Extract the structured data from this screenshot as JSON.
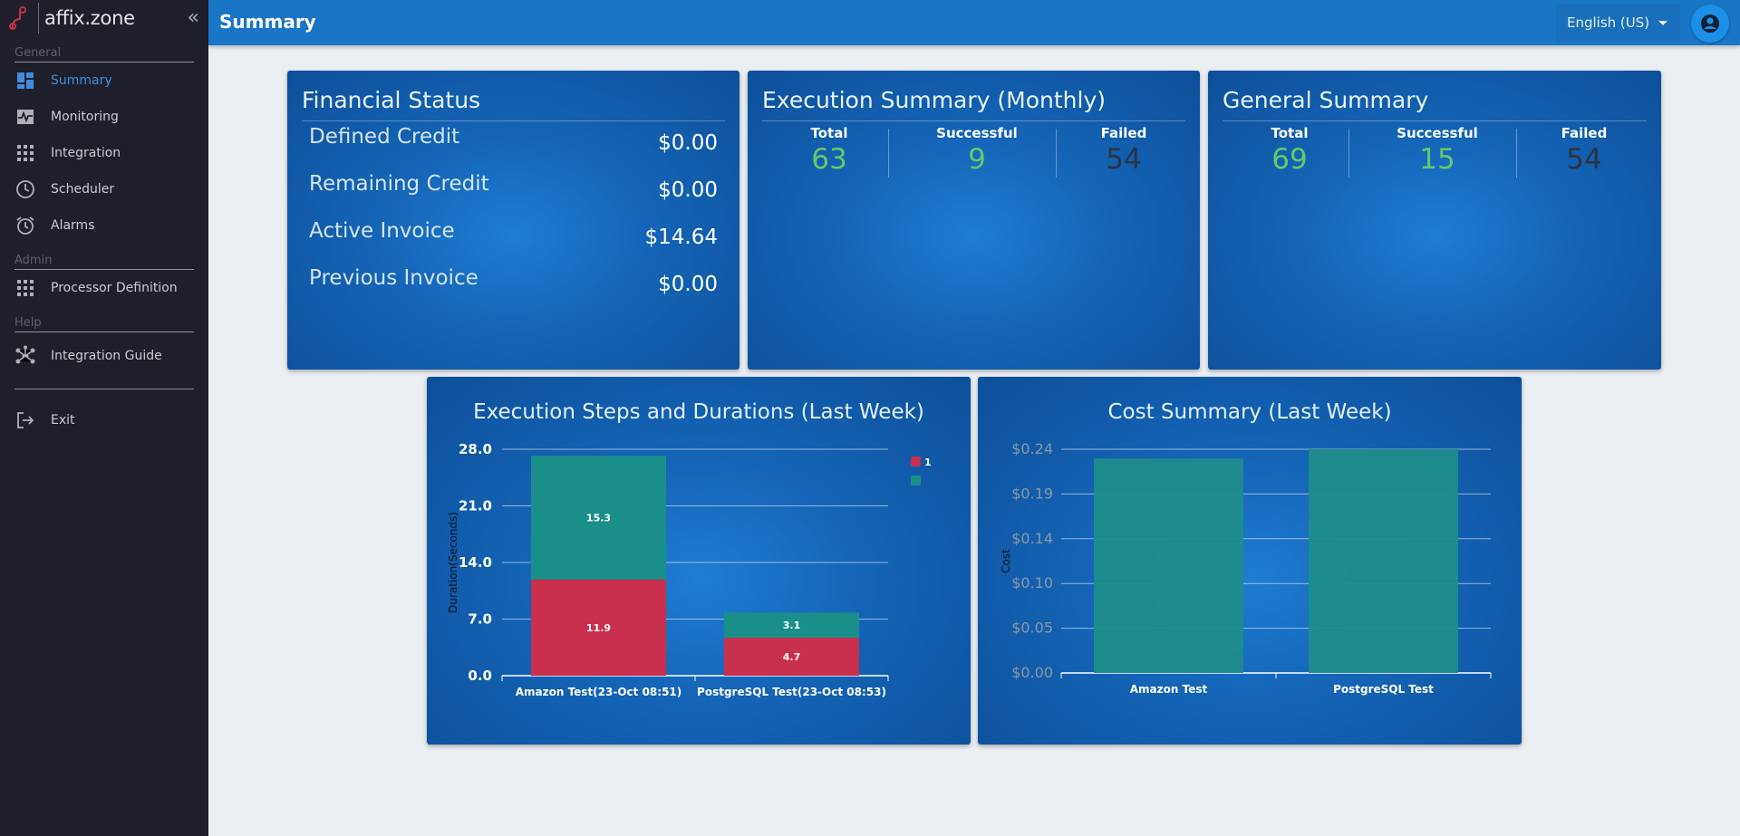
{
  "app": {
    "logo_text": "affix.zone"
  },
  "sidebar": {
    "collapse_glyph": "«",
    "sections": [
      {
        "label": "General"
      },
      {
        "label": "Admin"
      },
      {
        "label": "Help"
      }
    ],
    "items": [
      {
        "label": "Summary",
        "icon": "dashboard-icon",
        "active": true
      },
      {
        "label": "Monitoring",
        "icon": "monitoring-icon"
      },
      {
        "label": "Integration",
        "icon": "apps-grid-icon"
      },
      {
        "label": "Scheduler",
        "icon": "clock-icon"
      },
      {
        "label": "Alarms",
        "icon": "alarm-clock-icon"
      },
      {
        "label": "Processor Definition",
        "icon": "apps-grid-icon"
      },
      {
        "label": "Integration Guide",
        "icon": "hub-icon"
      },
      {
        "label": "Exit",
        "icon": "logout-icon"
      }
    ]
  },
  "header": {
    "title": "Summary",
    "language": "English (US)",
    "accent": "#1976c7"
  },
  "financial": {
    "title": "Financial Status",
    "rows": [
      {
        "label": "Defined Credit",
        "value": "$0.00"
      },
      {
        "label": "Remaining Credit",
        "value": "$0.00"
      },
      {
        "label": "Active Invoice",
        "value": "$14.64"
      },
      {
        "label": "Previous Invoice",
        "value": "$0.00"
      }
    ]
  },
  "execution_summary": {
    "title": "Execution Summary (Monthly)",
    "total_label": "Total",
    "total": "63",
    "successful_label": "Successful",
    "successful": "9",
    "failed_label": "Failed",
    "failed": "54"
  },
  "general_summary": {
    "title": "General Summary",
    "total_label": "Total",
    "total": "69",
    "successful_label": "Successful",
    "successful": "15",
    "failed_label": "Failed",
    "failed": "54"
  },
  "chart_data": [
    {
      "type": "bar",
      "stacked": true,
      "title": "Execution Steps and Durations (Last Week)",
      "ylabel": "Duration(Seconds)",
      "categories": [
        "Amazon Test(23-Oct 08:51)",
        "PostgreSQL Test(23-Oct 08:53)"
      ],
      "series": [
        {
          "name": "1",
          "color": "#c8304e",
          "values": [
            11.9,
            4.7
          ]
        },
        {
          "color": "#1a8f8a",
          "values": [
            15.3,
            3.1
          ]
        }
      ],
      "ylim": [
        0,
        28
      ],
      "yticks": [
        "0.0",
        "7.0",
        "14.0",
        "21.0",
        "28.0"
      ],
      "legend": "top-right",
      "grid": true
    },
    {
      "type": "bar",
      "title": "Cost Summary (Last Week)",
      "ylabel": "Cost",
      "categories": [
        "Amazon Test",
        "PostgreSQL Test"
      ],
      "values": [
        0.23,
        0.24
      ],
      "color": "#1f8c8c",
      "ylim": [
        0,
        0.24
      ],
      "yticks": [
        "$0.00",
        "$0.05",
        "$0.10",
        "$0.14",
        "$0.19",
        "$0.24"
      ],
      "grid": true
    }
  ]
}
